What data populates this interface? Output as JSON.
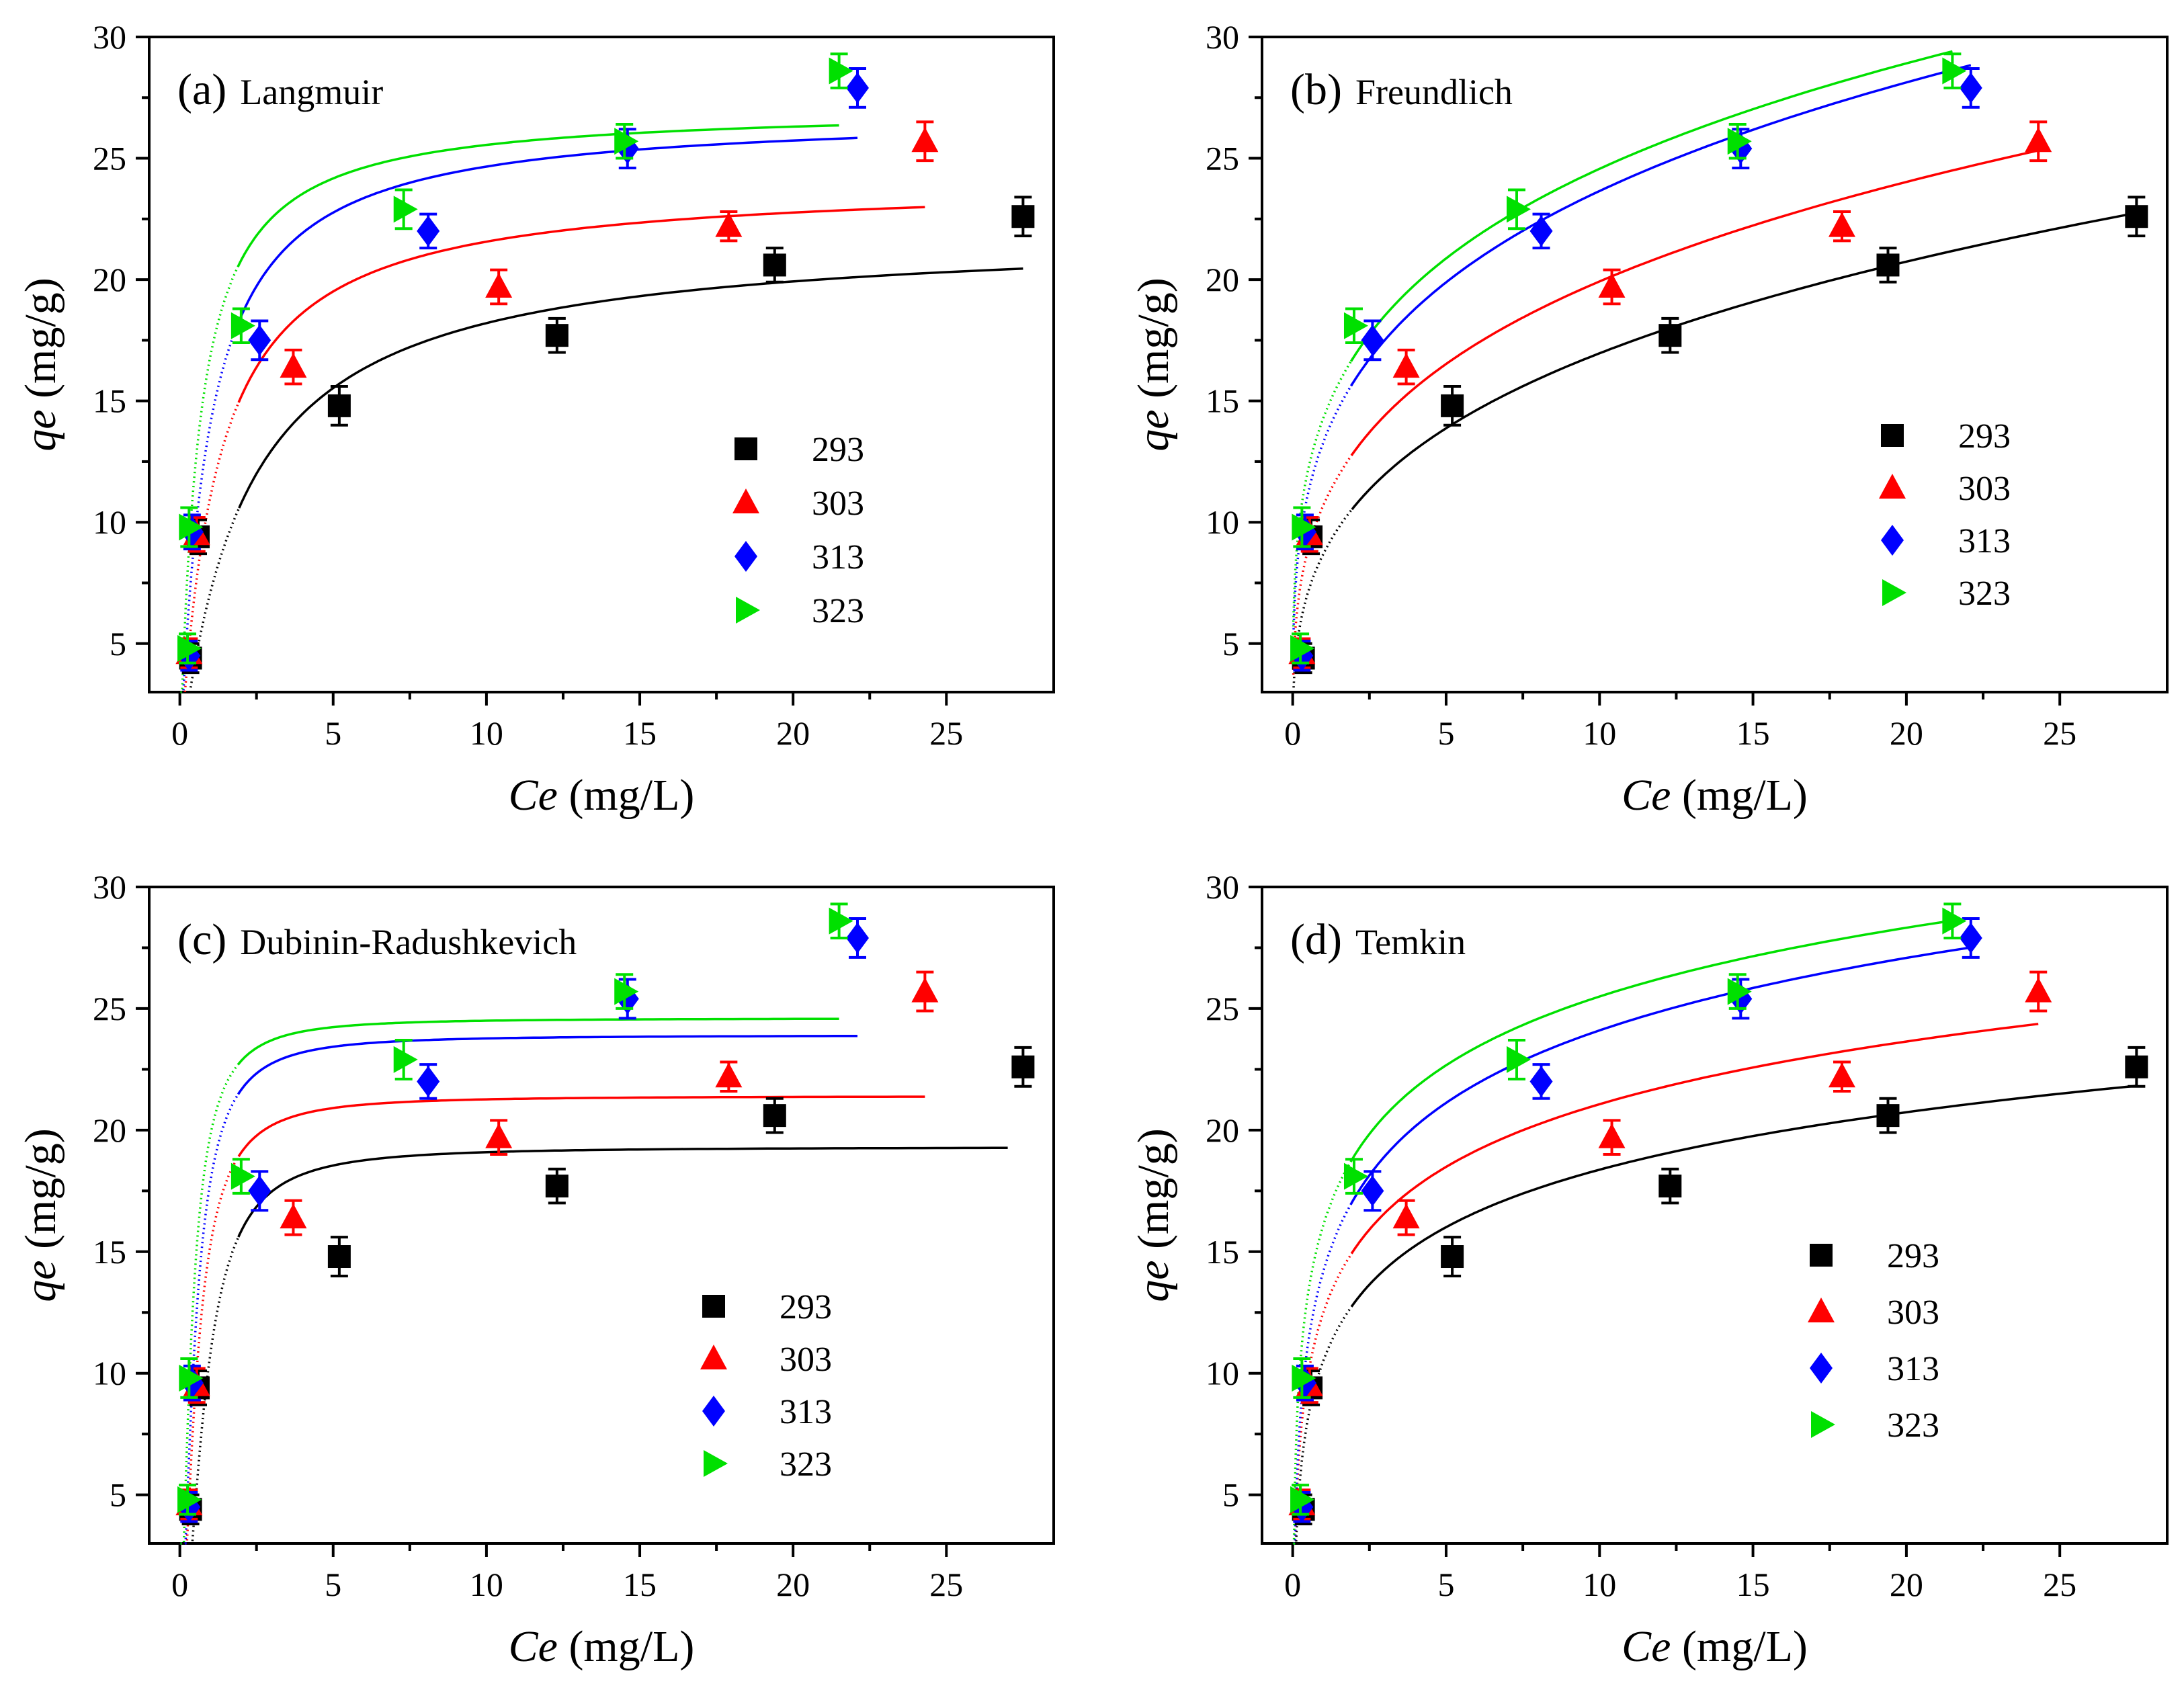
{
  "figure": {
    "colors": {
      "293": "#000000",
      "303": "#ff0000",
      "313": "#0000ff",
      "323": "#00e000"
    },
    "markers": {
      "293": "square",
      "303": "triangle-up",
      "313": "diamond",
      "323": "triangle-right"
    }
  },
  "chart_data": [
    {
      "type": "scatter",
      "panel_letter": "(a)",
      "title": "Langmuir",
      "xlabel": {
        "var": "Ce",
        "unit": " (mg/L)"
      },
      "ylabel": {
        "var": "qe",
        "unit": " (mg/g)"
      },
      "xlim": [
        -1,
        28.5
      ],
      "ylim": [
        3,
        30
      ],
      "xticks": [
        0,
        5,
        10,
        15,
        20,
        25
      ],
      "yticks": [
        5,
        10,
        15,
        20,
        25,
        30
      ],
      "legend": {
        "position": "right",
        "entries": [
          "293",
          "303",
          "313",
          "323"
        ]
      },
      "series": [
        {
          "name": "293",
          "points": [
            {
              "x": 0.35,
              "y": 4.4,
              "err": 0.6
            },
            {
              "x": 0.6,
              "y": 9.4,
              "err": 0.7
            },
            {
              "x": 5.2,
              "y": 14.8,
              "err": 0.8
            },
            {
              "x": 12.3,
              "y": 17.7,
              "err": 0.7
            },
            {
              "x": 19.4,
              "y": 20.6,
              "err": 0.7
            },
            {
              "x": 27.5,
              "y": 22.6,
              "err": 0.8
            }
          ],
          "fit": {
            "model": "langmuir",
            "qm": 22.0,
            "K": 0.48,
            "x_end": 27.5
          }
        },
        {
          "name": "303",
          "points": [
            {
              "x": 0.3,
              "y": 4.6,
              "err": 0.6
            },
            {
              "x": 0.55,
              "y": 9.5,
              "err": 0.7
            },
            {
              "x": 3.7,
              "y": 16.4,
              "err": 0.7
            },
            {
              "x": 10.4,
              "y": 19.7,
              "err": 0.7
            },
            {
              "x": 17.9,
              "y": 22.2,
              "err": 0.6
            },
            {
              "x": 24.3,
              "y": 25.7,
              "err": 0.8
            }
          ],
          "fit": {
            "model": "langmuir",
            "qm": 24.1,
            "K": 0.85,
            "x_end": 24.3
          }
        },
        {
          "name": "313",
          "points": [
            {
              "x": 0.3,
              "y": 4.5,
              "err": 0.6
            },
            {
              "x": 0.4,
              "y": 9.6,
              "err": 0.7
            },
            {
              "x": 2.6,
              "y": 17.5,
              "err": 0.8
            },
            {
              "x": 8.1,
              "y": 22.0,
              "err": 0.7
            },
            {
              "x": 14.6,
              "y": 25.4,
              "err": 0.8
            },
            {
              "x": 22.1,
              "y": 27.9,
              "err": 0.8
            }
          ],
          "fit": {
            "model": "langmuir",
            "qm": 26.9,
            "K": 1.1,
            "x_end": 22.1
          }
        },
        {
          "name": "323",
          "points": [
            {
              "x": 0.25,
              "y": 4.8,
              "err": 0.6
            },
            {
              "x": 0.3,
              "y": 9.8,
              "err": 0.8
            },
            {
              "x": 2.0,
              "y": 18.1,
              "err": 0.7
            },
            {
              "x": 7.3,
              "y": 22.9,
              "err": 0.8
            },
            {
              "x": 14.5,
              "y": 25.7,
              "err": 0.7
            },
            {
              "x": 21.5,
              "y": 28.6,
              "err": 0.7
            }
          ],
          "fit": {
            "model": "langmuir",
            "qm": 27.1,
            "K": 1.65,
            "x_end": 21.5
          }
        }
      ]
    },
    {
      "type": "scatter",
      "panel_letter": "(b)",
      "title": "Freundlich",
      "xlabel": {
        "var": "Ce",
        "unit": " (mg/L)"
      },
      "ylabel": {
        "var": "qe",
        "unit": " (mg/g)"
      },
      "xlim": [
        -1,
        28.5
      ],
      "ylim": [
        3,
        30
      ],
      "xticks": [
        0,
        5,
        10,
        15,
        20,
        25
      ],
      "yticks": [
        5,
        10,
        15,
        20,
        25,
        30
      ],
      "legend": {
        "position": "right",
        "entries": [
          "293",
          "303",
          "313",
          "323"
        ]
      },
      "series": [
        {
          "name": "293",
          "points": [
            {
              "x": 0.35,
              "y": 4.4,
              "err": 0.6
            },
            {
              "x": 0.6,
              "y": 9.4,
              "err": 0.7
            },
            {
              "x": 5.2,
              "y": 14.8,
              "err": 0.8
            },
            {
              "x": 12.3,
              "y": 17.7,
              "err": 0.7
            },
            {
              "x": 19.4,
              "y": 20.6,
              "err": 0.7
            },
            {
              "x": 27.5,
              "y": 22.6,
              "err": 0.8
            }
          ],
          "fit": {
            "model": "freundlich",
            "Kf": 8.7,
            "inv_n": 0.29,
            "x_end": 27.5
          }
        },
        {
          "name": "303",
          "points": [
            {
              "x": 0.3,
              "y": 4.6,
              "err": 0.6
            },
            {
              "x": 0.55,
              "y": 9.5,
              "err": 0.7
            },
            {
              "x": 3.7,
              "y": 16.4,
              "err": 0.7
            },
            {
              "x": 10.4,
              "y": 19.7,
              "err": 0.7
            },
            {
              "x": 17.9,
              "y": 22.2,
              "err": 0.6
            },
            {
              "x": 24.3,
              "y": 25.7,
              "err": 0.8
            }
          ],
          "fit": {
            "model": "freundlich",
            "Kf": 10.7,
            "inv_n": 0.27,
            "x_end": 24.3
          }
        },
        {
          "name": "313",
          "points": [
            {
              "x": 0.3,
              "y": 4.5,
              "err": 0.6
            },
            {
              "x": 0.4,
              "y": 9.6,
              "err": 0.7
            },
            {
              "x": 2.6,
              "y": 17.5,
              "err": 0.8
            },
            {
              "x": 8.1,
              "y": 22.0,
              "err": 0.7
            },
            {
              "x": 14.6,
              "y": 25.4,
              "err": 0.8
            },
            {
              "x": 22.1,
              "y": 27.9,
              "err": 0.8
            }
          ],
          "fit": {
            "model": "freundlich",
            "Kf": 13.3,
            "inv_n": 0.25,
            "x_end": 22.1
          }
        },
        {
          "name": "323",
          "points": [
            {
              "x": 0.25,
              "y": 4.8,
              "err": 0.6
            },
            {
              "x": 0.3,
              "y": 9.8,
              "err": 0.8
            },
            {
              "x": 2.0,
              "y": 18.1,
              "err": 0.7
            },
            {
              "x": 7.3,
              "y": 22.9,
              "err": 0.8
            },
            {
              "x": 14.5,
              "y": 25.7,
              "err": 0.7
            },
            {
              "x": 21.5,
              "y": 28.6,
              "err": 0.7
            }
          ],
          "fit": {
            "model": "freundlich",
            "Kf": 14.3,
            "inv_n": 0.235,
            "x_end": 21.5
          }
        }
      ]
    },
    {
      "type": "scatter",
      "panel_letter": "(c)",
      "title": "Dubinin-Radushkevich",
      "xlabel": {
        "var": "Ce",
        "unit": " (mg/L)"
      },
      "ylabel": {
        "var": "qe",
        "unit": " (mg/g)"
      },
      "xlim": [
        -1,
        28.5
      ],
      "ylim": [
        3,
        30
      ],
      "xticks": [
        0,
        5,
        10,
        15,
        20,
        25
      ],
      "yticks": [
        5,
        10,
        15,
        20,
        25,
        30
      ],
      "legend": {
        "position": "right",
        "entries": [
          "293",
          "303",
          "313",
          "323"
        ]
      },
      "series": [
        {
          "name": "293",
          "points": [
            {
              "x": 0.35,
              "y": 4.4,
              "err": 0.6
            },
            {
              "x": 0.6,
              "y": 9.4,
              "err": 0.7
            },
            {
              "x": 5.2,
              "y": 14.8,
              "err": 0.8
            },
            {
              "x": 12.3,
              "y": 17.7,
              "err": 0.7
            },
            {
              "x": 19.4,
              "y": 20.6,
              "err": 0.7
            },
            {
              "x": 27.5,
              "y": 22.6,
              "err": 0.8
            }
          ],
          "fit": {
            "model": "dr",
            "qm": 19.3,
            "B": 1.2,
            "x_end": 27.0
          }
        },
        {
          "name": "303",
          "points": [
            {
              "x": 0.3,
              "y": 4.6,
              "err": 0.6
            },
            {
              "x": 0.55,
              "y": 9.5,
              "err": 0.7
            },
            {
              "x": 3.7,
              "y": 16.4,
              "err": 0.7
            },
            {
              "x": 10.4,
              "y": 19.7,
              "err": 0.7
            },
            {
              "x": 17.9,
              "y": 22.2,
              "err": 0.6
            },
            {
              "x": 24.3,
              "y": 25.7,
              "err": 0.8
            }
          ],
          "fit": {
            "model": "dr",
            "qm": 21.4,
            "B": 0.7,
            "x_end": 24.3
          }
        },
        {
          "name": "313",
          "points": [
            {
              "x": 0.3,
              "y": 4.5,
              "err": 0.6
            },
            {
              "x": 0.4,
              "y": 9.6,
              "err": 0.7
            },
            {
              "x": 2.6,
              "y": 17.5,
              "err": 0.8
            },
            {
              "x": 8.1,
              "y": 22.0,
              "err": 0.7
            },
            {
              "x": 14.6,
              "y": 25.4,
              "err": 0.8
            },
            {
              "x": 22.1,
              "y": 27.9,
              "err": 0.8
            }
          ],
          "fit": {
            "model": "dr",
            "qm": 23.9,
            "B": 0.6,
            "x_end": 22.1
          }
        },
        {
          "name": "323",
          "points": [
            {
              "x": 0.25,
              "y": 4.8,
              "err": 0.6
            },
            {
              "x": 0.3,
              "y": 9.8,
              "err": 0.8
            },
            {
              "x": 2.0,
              "y": 18.1,
              "err": 0.7
            },
            {
              "x": 7.3,
              "y": 22.9,
              "err": 0.8
            },
            {
              "x": 14.5,
              "y": 25.7,
              "err": 0.7
            },
            {
              "x": 21.5,
              "y": 28.6,
              "err": 0.7
            }
          ],
          "fit": {
            "model": "dr",
            "qm": 24.6,
            "B": 0.45,
            "x_end": 21.5
          }
        }
      ]
    },
    {
      "type": "scatter",
      "panel_letter": "(d)",
      "title": "Temkin",
      "xlabel": {
        "var": "Ce",
        "unit": " (mg/L)"
      },
      "ylabel": {
        "var": "qe",
        "unit": " (mg/g)"
      },
      "xlim": [
        -1,
        28.5
      ],
      "ylim": [
        3,
        30
      ],
      "xticks": [
        0,
        5,
        10,
        15,
        20,
        25
      ],
      "yticks": [
        5,
        10,
        15,
        20,
        25,
        30
      ],
      "legend": {
        "position": "right",
        "entries": [
          "293",
          "303",
          "313",
          "323"
        ]
      },
      "series": [
        {
          "name": "293",
          "points": [
            {
              "x": 0.35,
              "y": 4.4,
              "err": 0.6
            },
            {
              "x": 0.6,
              "y": 9.4,
              "err": 0.7
            },
            {
              "x": 5.2,
              "y": 14.8,
              "err": 0.8
            },
            {
              "x": 12.3,
              "y": 17.7,
              "err": 0.7
            },
            {
              "x": 19.4,
              "y": 20.6,
              "err": 0.7
            },
            {
              "x": 27.5,
              "y": 22.6,
              "err": 0.8
            }
          ],
          "fit": {
            "model": "temkin",
            "a": 10.52,
            "b": 3.41,
            "x_end": 27.5
          }
        },
        {
          "name": "303",
          "points": [
            {
              "x": 0.3,
              "y": 4.6,
              "err": 0.6
            },
            {
              "x": 0.55,
              "y": 9.5,
              "err": 0.7
            },
            {
              "x": 3.7,
              "y": 16.4,
              "err": 0.7
            },
            {
              "x": 10.4,
              "y": 19.7,
              "err": 0.7
            },
            {
              "x": 17.9,
              "y": 22.2,
              "err": 0.6
            },
            {
              "x": 24.3,
              "y": 25.7,
              "err": 0.8
            }
          ],
          "fit": {
            "model": "temkin",
            "a": 12.5,
            "b": 3.72,
            "x_end": 24.3
          }
        },
        {
          "name": "313",
          "points": [
            {
              "x": 0.3,
              "y": 4.5,
              "err": 0.6
            },
            {
              "x": 0.4,
              "y": 9.6,
              "err": 0.7
            },
            {
              "x": 2.6,
              "y": 17.5,
              "err": 0.8
            },
            {
              "x": 8.1,
              "y": 22.0,
              "err": 0.7
            },
            {
              "x": 14.6,
              "y": 25.4,
              "err": 0.8
            },
            {
              "x": 22.1,
              "y": 27.9,
              "err": 0.8
            }
          ],
          "fit": {
            "model": "temkin",
            "a": 14.2,
            "b": 4.3,
            "x_end": 22.1
          }
        },
        {
          "name": "323",
          "points": [
            {
              "x": 0.25,
              "y": 4.8,
              "err": 0.6
            },
            {
              "x": 0.3,
              "y": 9.8,
              "err": 0.8
            },
            {
              "x": 2.0,
              "y": 18.1,
              "err": 0.7
            },
            {
              "x": 7.3,
              "y": 22.9,
              "err": 0.8
            },
            {
              "x": 14.5,
              "y": 25.7,
              "err": 0.7
            },
            {
              "x": 21.5,
              "y": 28.6,
              "err": 0.7
            }
          ],
          "fit": {
            "model": "temkin",
            "a": 16.1,
            "b": 4.08,
            "x_end": 21.5
          }
        }
      ]
    }
  ]
}
